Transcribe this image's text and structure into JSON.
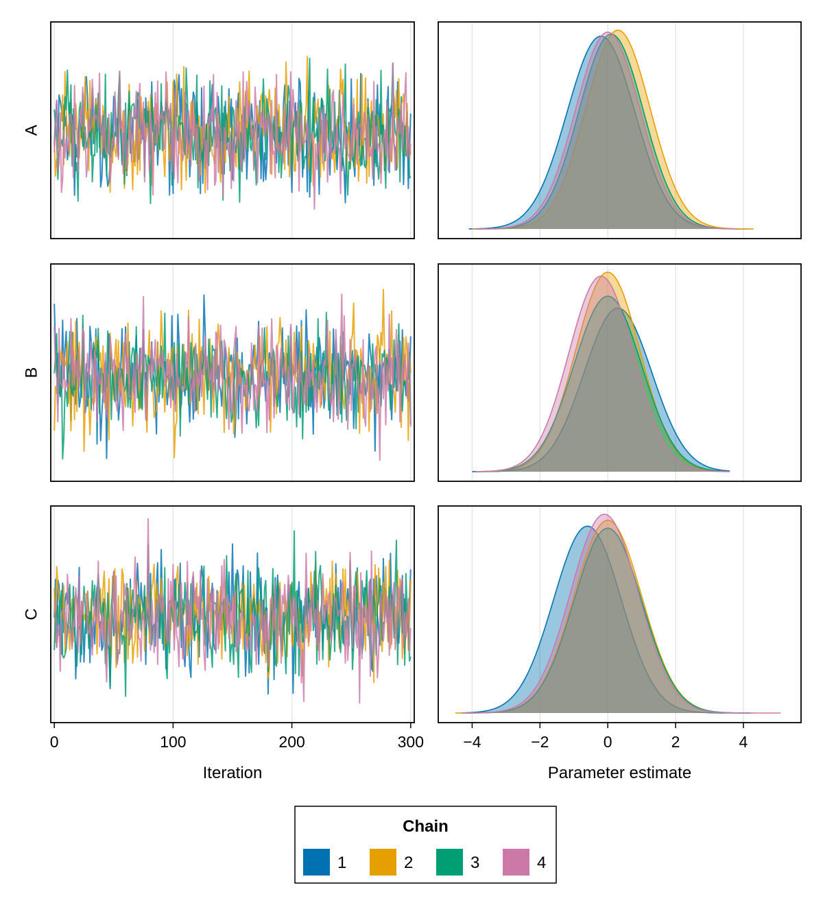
{
  "chart_data": {
    "type": "line",
    "panels": {
      "rows": [
        "A",
        "B",
        "C"
      ],
      "columns": [
        "trace",
        "density"
      ]
    },
    "trace": {
      "xlabel": "Iteration",
      "xlim": [
        -3,
        303
      ],
      "xticks": [
        0,
        100,
        200,
        300
      ],
      "iterations": 300,
      "ylim": [
        -4.2,
        4.4
      ]
    },
    "density": {
      "xlabel": "Parameter estimate",
      "xlim": [
        -5.0,
        5.7
      ],
      "xticks": [
        -4,
        -2,
        0,
        2,
        4
      ],
      "xtick_labels": [
        "−4",
        "−2",
        "0",
        "2",
        "4"
      ]
    },
    "grid": true,
    "legend": {
      "title": "Chain",
      "position": "bottom",
      "entries": [
        {
          "label": "1",
          "color": "#0072B2"
        },
        {
          "label": "2",
          "color": "#E69F00"
        },
        {
          "label": "3",
          "color": "#009E73"
        },
        {
          "label": "4",
          "color": "#CC79A7"
        }
      ]
    },
    "series": [
      {
        "name": "1",
        "color": "#0072B2",
        "density": {
          "A": {
            "range": [
              -4.1,
              4.1
            ],
            "peaks": [
              {
                "x": -0.2,
                "h": 0.97
              }
            ],
            "sd": 1.0
          },
          "B": {
            "range": [
              -4.0,
              3.6
            ],
            "peaks": [
              {
                "x": 0.3,
                "h": 0.82
              }
            ],
            "sd": 1.0
          },
          "C": {
            "range": [
              -4.2,
              4.2
            ],
            "peaks": [
              {
                "x": -0.6,
                "h": 0.94
              }
            ],
            "sd": 1.0
          }
        }
      },
      {
        "name": "2",
        "color": "#E69F00",
        "density": {
          "A": {
            "range": [
              -4.0,
              4.3
            ],
            "peaks": [
              {
                "x": 0.3,
                "h": 1.0
              }
            ],
            "sd": 0.95
          },
          "B": {
            "range": [
              -3.9,
              3.4
            ],
            "peaks": [
              {
                "x": 0.0,
                "h": 1.0
              }
            ],
            "sd": 0.95
          },
          "C": {
            "range": [
              -4.5,
              4.0
            ],
            "peaks": [
              {
                "x": 0.0,
                "h": 0.97
              }
            ],
            "sd": 1.0
          }
        }
      },
      {
        "name": "3",
        "color": "#009E73",
        "density": {
          "A": {
            "range": [
              -3.9,
              3.2
            ],
            "peaks": [
              {
                "x": 0.1,
                "h": 0.98
              }
            ],
            "sd": 0.95
          },
          "B": {
            "range": [
              -3.9,
              3.3
            ],
            "peaks": [
              {
                "x": 0.0,
                "h": 0.88
              }
            ],
            "sd": 1.0
          },
          "C": {
            "range": [
              -4.3,
              4.2
            ],
            "peaks": [
              {
                "x": 0.0,
                "h": 0.93
              }
            ],
            "sd": 1.0
          }
        }
      },
      {
        "name": "4",
        "color": "#CC79A7",
        "density": {
          "A": {
            "range": [
              -3.9,
              3.8
            ],
            "peaks": [
              {
                "x": 0.0,
                "h": 0.99
              }
            ],
            "sd": 0.95
          },
          "B": {
            "range": [
              -3.9,
              3.6
            ],
            "peaks": [
              {
                "x": -0.2,
                "h": 0.98
              }
            ],
            "sd": 0.95
          },
          "C": {
            "range": [
              -4.3,
              5.1
            ],
            "peaks": [
              {
                "x": -0.1,
                "h": 1.0
              }
            ],
            "sd": 1.0
          }
        }
      }
    ]
  }
}
